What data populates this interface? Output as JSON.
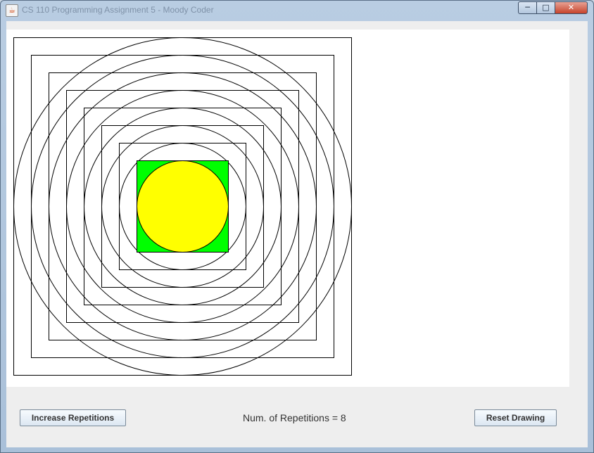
{
  "window": {
    "title": "CS 110 Programming Assignment 5 - Moody Coder",
    "icon": "java-cup-icon",
    "controls": {
      "minimize": "minimize-icon",
      "maximize": "maximize-icon",
      "close": "close-icon"
    }
  },
  "drawing": {
    "repetitions": 8,
    "colors": {
      "outline": "#000000",
      "center_square_fill": "#00ff00",
      "center_circle_fill": "#ffff00",
      "background": "#ffffff"
    }
  },
  "controls": {
    "increase_label": "Increase Repetitions",
    "count_label": "Num. of Repetitions = 8",
    "reset_label": "Reset Drawing"
  }
}
